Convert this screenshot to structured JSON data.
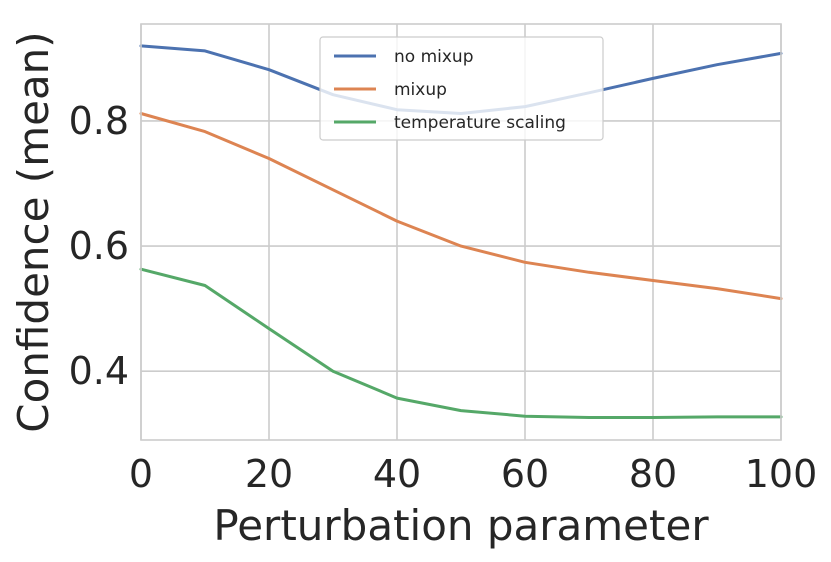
{
  "chart_data": {
    "type": "line",
    "title": "",
    "xlabel": "Perturbation parameter",
    "ylabel": "Confidence (mean)",
    "xlim": [
      0,
      100
    ],
    "ylim": [
      0.29,
      0.955
    ],
    "xticks": [
      0,
      20,
      40,
      60,
      80,
      100
    ],
    "xtick_labels": [
      "0",
      "20",
      "40",
      "60",
      "80",
      "100"
    ],
    "yticks": [
      0.4,
      0.6,
      0.8
    ],
    "ytick_labels": [
      "0.4",
      "0.6",
      "0.8"
    ],
    "grid": true,
    "legend_position": "top-center",
    "x": [
      0,
      10,
      20,
      30,
      40,
      50,
      60,
      70,
      80,
      90,
      100
    ],
    "series": [
      {
        "name": "no mixup",
        "color": "#4c72b0",
        "values": [
          0.92,
          0.912,
          0.882,
          0.842,
          0.818,
          0.812,
          0.823,
          0.845,
          0.868,
          0.89,
          0.908
        ]
      },
      {
        "name": "mixup",
        "color": "#dd8452",
        "values": [
          0.812,
          0.783,
          0.74,
          0.69,
          0.64,
          0.6,
          0.574,
          0.558,
          0.545,
          0.532,
          0.516
        ]
      },
      {
        "name": "temperature scaling",
        "color": "#55a868",
        "values": [
          0.563,
          0.537,
          0.468,
          0.4,
          0.357,
          0.337,
          0.328,
          0.326,
          0.326,
          0.327,
          0.327
        ]
      }
    ]
  }
}
